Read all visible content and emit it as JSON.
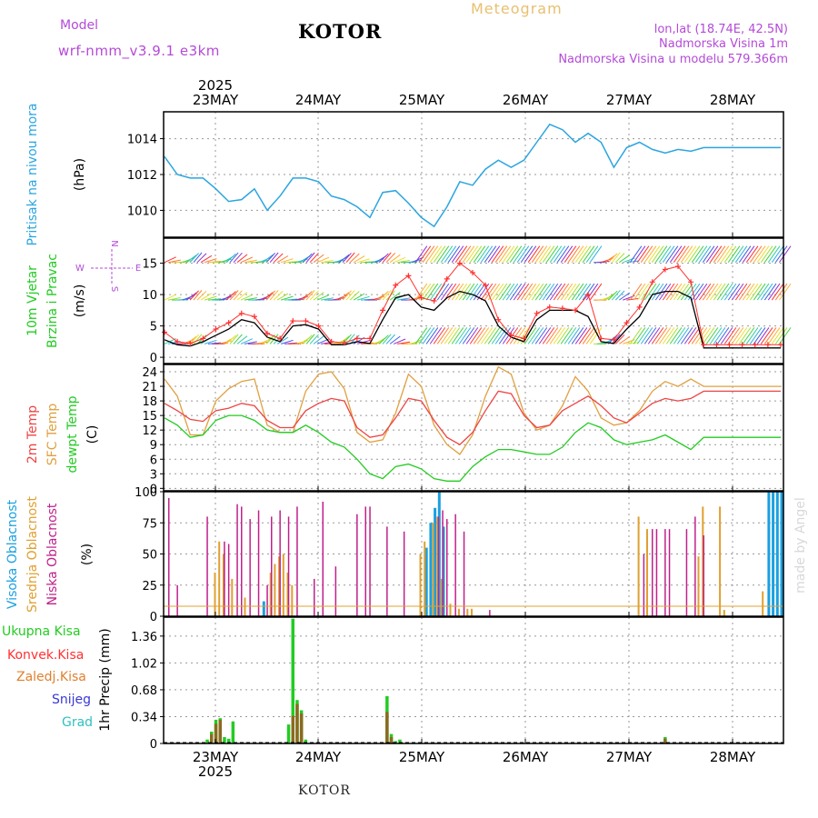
{
  "header": {
    "model_label": "Model",
    "model_name": "wrf-nmm_v3.9.1 e3km",
    "city": "KOTOR",
    "title": "Meteogram",
    "coords": "lon,lat (18.74E, 42.5N)",
    "elevation": "Nadmorska Visina 1m",
    "model_elevation": "Nadmorska Visina u modelu 579.366m"
  },
  "footer": {
    "city": "KOTOR"
  },
  "watermark": "made by Angel",
  "x_axis": {
    "year_label": "2025",
    "days": [
      "23MAY",
      "24MAY",
      "25MAY",
      "26MAY",
      "27MAY",
      "28MAY"
    ]
  },
  "colors": {
    "pressure": "#2ba5e0",
    "wind_speed": "#000000",
    "gust": "#ff3030",
    "temp2m": "#ee4444",
    "sfc_temp": "#e0a040",
    "dewpt": "#22cc22",
    "high_cloud": "#1aa0e0",
    "mid_cloud": "#e0a030",
    "low_cloud": "#c0208a",
    "total_precip": "#22cc22",
    "conv_precip": "#ff3030",
    "frozen_precip": "#e08030",
    "snow": "#3838d8",
    "graupel": "#30c0c0",
    "side_purple": "#b44ad8"
  },
  "chart_data": [
    {
      "type": "line",
      "title": "Pritisak na nivou mora",
      "ylabel": "(hPa)",
      "ylim": [
        1008.5,
        1015.5
      ],
      "yticks": [
        1010,
        1012,
        1014
      ],
      "x_hours_from_start": [
        0,
        3,
        6,
        9,
        12,
        15,
        18,
        21,
        24,
        27,
        30,
        33,
        36,
        39,
        42,
        45,
        48,
        51,
        54,
        57,
        60,
        63,
        66,
        69,
        72,
        75,
        78,
        81,
        84,
        87,
        90,
        93,
        96,
        99,
        102,
        105,
        108,
        111,
        114,
        117,
        120,
        123,
        126,
        129,
        132,
        135,
        138,
        141,
        144
      ],
      "series": [
        {
          "name": "MSLP",
          "values": [
            1013.0,
            1012.0,
            1011.8,
            1011.8,
            1011.2,
            1010.5,
            1010.6,
            1011.2,
            1010.0,
            1010.8,
            1011.8,
            1011.8,
            1011.6,
            1010.8,
            1010.6,
            1010.2,
            1009.6,
            1011.0,
            1011.1,
            1010.4,
            1009.6,
            1009.1,
            1010.2,
            1011.6,
            1011.4,
            1012.3,
            1012.8,
            1012.4,
            1012.8,
            1013.8,
            1014.8,
            1014.5,
            1013.8,
            1014.3,
            1013.8,
            1012.4,
            1013.5,
            1013.8,
            1013.4,
            1013.2,
            1013.4,
            1013.3,
            1013.5,
            1013.5,
            1013.5,
            1013.5,
            1013.5,
            1013.5,
            1013.5
          ]
        }
      ]
    },
    {
      "type": "line",
      "title": "10m Vjetar Brzina i Pravac",
      "ylabel": "(m/s)",
      "compass": {
        "north": "N",
        "west": "W",
        "east": "E",
        "south": "S"
      },
      "ylim": [
        -1,
        19
      ],
      "yticks": [
        0,
        5,
        10,
        15
      ],
      "x_hours_from_start": [
        0,
        3,
        6,
        9,
        12,
        15,
        18,
        21,
        24,
        27,
        30,
        33,
        36,
        39,
        42,
        45,
        48,
        51,
        54,
        57,
        60,
        63,
        66,
        69,
        72,
        75,
        78,
        81,
        84,
        87,
        90,
        93,
        96,
        99,
        102,
        105,
        108,
        111,
        114,
        117,
        120,
        123,
        126,
        129,
        132,
        135,
        138,
        141,
        144
      ],
      "series": [
        {
          "name": "wind speed",
          "values": [
            2.8,
            2.0,
            1.8,
            2.5,
            3.5,
            4.5,
            6.0,
            5.5,
            3.2,
            2.5,
            5.0,
            5.2,
            4.5,
            2.0,
            2.0,
            2.5,
            2.2,
            6.0,
            9.5,
            10.0,
            8.0,
            7.5,
            9.5,
            10.5,
            10.0,
            9.0,
            5.0,
            3.2,
            2.5,
            6.0,
            7.5,
            7.5,
            7.5,
            6.5,
            2.5,
            2.2,
            4.5,
            6.5,
            10.0,
            10.5,
            10.5,
            9.5,
            1.5,
            1.5,
            1.5,
            1.5,
            1.5,
            1.5,
            1.5
          ]
        },
        {
          "name": "gust",
          "values": [
            4.0,
            2.5,
            2.2,
            3.0,
            4.5,
            5.5,
            7.0,
            6.5,
            3.8,
            3.0,
            5.8,
            5.8,
            5.0,
            2.5,
            2.3,
            3.0,
            3.0,
            7.5,
            11.5,
            13.0,
            9.5,
            9.0,
            12.5,
            15.0,
            13.5,
            11.5,
            6.0,
            3.5,
            3.0,
            7.0,
            8.0,
            7.8,
            7.5,
            10.0,
            3.0,
            2.8,
            5.5,
            8.0,
            12.0,
            14.0,
            14.5,
            12.0,
            2.0,
            2.0,
            2.0,
            2.0,
            2.0,
            2.0,
            2.0
          ]
        }
      ]
    },
    {
      "type": "line",
      "title": "2m Temp / SFC Temp / dewpt Temp",
      "ylabel": "(C)",
      "ylim": [
        -0.5,
        25.5
      ],
      "yticks": [
        0,
        3,
        6,
        9,
        12,
        15,
        18,
        21,
        24
      ],
      "x_hours_from_start": [
        0,
        3,
        6,
        9,
        12,
        15,
        18,
        21,
        24,
        27,
        30,
        33,
        36,
        39,
        42,
        45,
        48,
        51,
        54,
        57,
        60,
        63,
        66,
        69,
        72,
        75,
        78,
        81,
        84,
        87,
        90,
        93,
        96,
        99,
        102,
        105,
        108,
        111,
        114,
        117,
        120,
        123,
        126,
        129,
        132,
        135,
        138,
        141,
        144
      ],
      "series": [
        {
          "name": "2m Temp",
          "values": [
            17.5,
            16.0,
            14.2,
            13.8,
            16.0,
            16.5,
            17.5,
            17.0,
            14.0,
            12.5,
            12.5,
            16.0,
            17.5,
            18.5,
            18.0,
            12.5,
            10.5,
            11.0,
            14.5,
            18.5,
            18.0,
            14.0,
            10.5,
            9.0,
            11.5,
            16.0,
            20.0,
            19.5,
            15.0,
            12.5,
            13.0,
            16.0,
            17.5,
            19.0,
            17.0,
            14.5,
            13.5,
            15.5,
            17.5,
            18.5,
            18.0,
            18.5,
            20.0,
            20.0,
            20.0,
            20.0,
            20.0,
            20.0,
            20.0
          ]
        },
        {
          "name": "SFC Temp",
          "values": [
            22.5,
            19.0,
            11.0,
            11.0,
            18.0,
            20.5,
            22.0,
            22.5,
            13.0,
            11.5,
            11.5,
            20.0,
            23.5,
            24.0,
            20.5,
            11.5,
            9.5,
            10.0,
            15.5,
            23.5,
            21.0,
            13.0,
            9.0,
            7.0,
            11.0,
            19.0,
            25.0,
            23.5,
            15.5,
            12.0,
            13.0,
            17.0,
            23.0,
            20.0,
            14.5,
            13.0,
            13.5,
            16.0,
            20.0,
            22.0,
            21.0,
            22.5,
            21.0,
            21.0,
            21.0,
            21.0,
            21.0,
            21.0,
            21.0
          ]
        },
        {
          "name": "dewpt Temp",
          "values": [
            14.5,
            13.0,
            10.5,
            11.0,
            14.0,
            15.0,
            15.0,
            14.0,
            12.0,
            11.5,
            11.5,
            13.0,
            11.5,
            9.5,
            8.5,
            6.0,
            3.0,
            2.0,
            4.5,
            5.0,
            4.0,
            2.0,
            1.5,
            1.5,
            4.5,
            6.5,
            8.0,
            8.0,
            7.5,
            7.0,
            7.0,
            8.5,
            11.5,
            13.5,
            12.5,
            10.0,
            9.0,
            9.5,
            10.0,
            11.0,
            9.5,
            8.0,
            10.5,
            10.5,
            10.5,
            10.5,
            10.5,
            10.5,
            10.5
          ]
        }
      ]
    },
    {
      "type": "bar",
      "title": "Visoka / Srednja / Niska Oblacnost",
      "ylabel": "(%)",
      "ylim": [
        0,
        100
      ],
      "yticks": [
        0,
        25,
        50,
        75,
        100
      ],
      "legend": [
        "Visoka Oblacnost",
        "Srednja Oblacnost",
        "Niska Oblacnost"
      ],
      "series": [
        {
          "name": "Visoka Oblacnost",
          "x_hours": [
            23,
            61,
            62,
            63,
            64,
            65,
            141,
            142,
            143,
            144
          ],
          "values": [
            12,
            55,
            75,
            87,
            100,
            72,
            100,
            100,
            100,
            100
          ]
        },
        {
          "name": "Srednja Oblacnost",
          "x_hours": [
            12,
            13,
            14,
            16,
            19,
            25,
            26,
            27,
            28,
            29,
            30,
            60,
            61,
            63,
            64,
            65,
            67,
            69,
            71,
            72,
            111,
            113,
            125,
            126,
            130,
            131,
            140
          ],
          "values": [
            35,
            60,
            50,
            30,
            15,
            35,
            42,
            48,
            50,
            35,
            25,
            50,
            60,
            75,
            80,
            30,
            10,
            6,
            6,
            6,
            80,
            70,
            48,
            88,
            88,
            5,
            20
          ]
        },
        {
          "name": "Niska Oblacnost",
          "x_hours": [
            1,
            3,
            10,
            14,
            15,
            17,
            18,
            20,
            22,
            24,
            25,
            27,
            29,
            31,
            35,
            37,
            40,
            45,
            47,
            48,
            52,
            56,
            64,
            65,
            66,
            68,
            70,
            76,
            112,
            114,
            115,
            117,
            118,
            122,
            124,
            126
          ],
          "values": [
            95,
            25,
            80,
            60,
            58,
            90,
            88,
            78,
            85,
            25,
            80,
            85,
            80,
            88,
            30,
            92,
            40,
            82,
            88,
            88,
            72,
            68,
            80,
            85,
            78,
            82,
            68,
            5,
            50,
            70,
            70,
            70,
            70,
            70,
            80,
            65
          ]
        }
      ]
    },
    {
      "type": "bar",
      "title": "1hr Precip",
      "ylabel": "1hr Precip (mm)",
      "ylim": [
        0,
        1.6
      ],
      "yticks": [
        0,
        0.34,
        0.68,
        1.02,
        1.36
      ],
      "legend": [
        "Ukupna Kisa",
        "Konvek.Kisa",
        "Zaledj.Kisa",
        "Snijeg",
        "Grad"
      ],
      "series": [
        {
          "name": "Ukupna Kisa",
          "x_hours": [
            10,
            11,
            12,
            13,
            14,
            15,
            16,
            29,
            30,
            31,
            32,
            33,
            52,
            53,
            54,
            55,
            117
          ],
          "values": [
            0.05,
            0.15,
            0.3,
            0.32,
            0.08,
            0.06,
            0.28,
            0.24,
            1.58,
            0.55,
            0.42,
            0.05,
            0.6,
            0.12,
            0.03,
            0.05,
            0.08
          ]
        },
        {
          "name": "Konvek.Kisa",
          "x_hours": [
            11,
            12,
            13,
            30,
            31,
            32,
            52,
            53,
            117
          ],
          "values": [
            0.12,
            0.25,
            0.3,
            0.35,
            0.5,
            0.38,
            0.4,
            0.08,
            0.06
          ]
        }
      ]
    }
  ]
}
